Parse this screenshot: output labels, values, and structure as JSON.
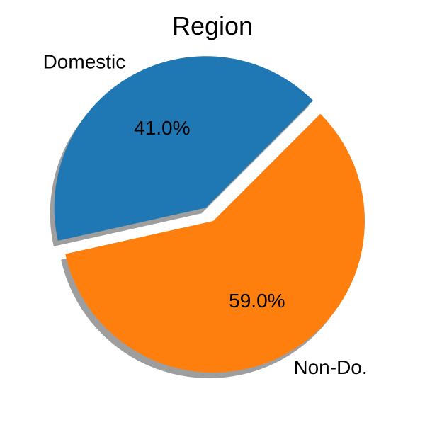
{
  "chart_data": {
    "type": "pie",
    "title": "Region",
    "labels": [
      "Domestic",
      "Non-Do."
    ],
    "values": [
      41.0,
      59.0
    ],
    "value_labels": [
      "41.0%",
      "59.0%"
    ],
    "colors": [
      "#1f77b4",
      "#ff7f0e"
    ],
    "explode": [
      0.1,
      0
    ],
    "shadow": true,
    "start_angle": 45
  }
}
